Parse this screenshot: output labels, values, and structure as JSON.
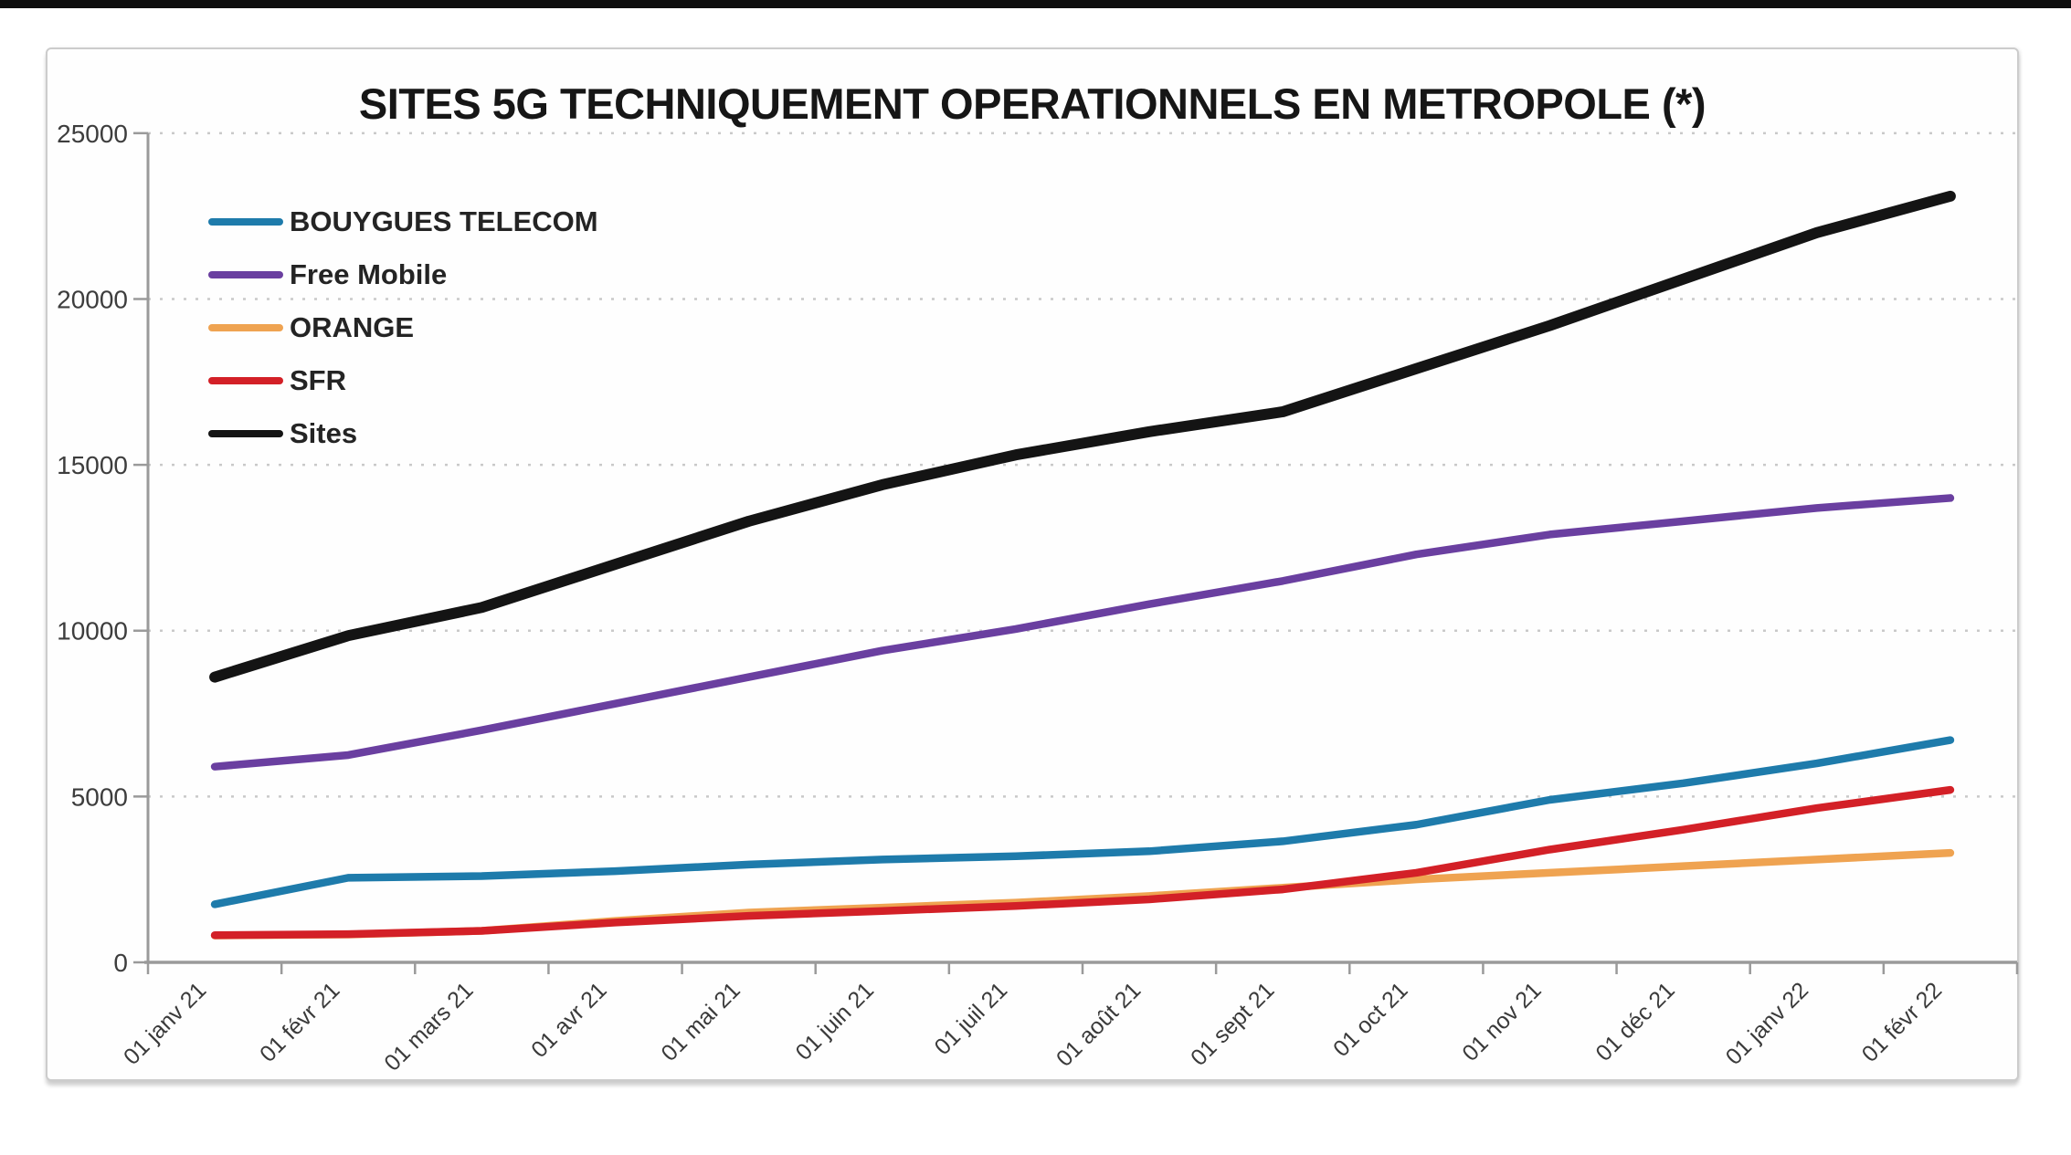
{
  "page": {
    "top_strip": "black-bar"
  },
  "chart": {
    "title": "SITES 5G TECHNIQUEMENT OPERATIONNELS EN METROPOLE (*)"
  },
  "chart_data": {
    "type": "line",
    "title": "SITES 5G TECHNIQUEMENT OPERATIONNELS EN METROPOLE (*)",
    "categories": [
      "01 janv 21",
      "01 févr 21",
      "01 mars 21",
      "01 avr 21",
      "01 mai 21",
      "01 juin 21",
      "01 juil 21",
      "01 août 21",
      "01 sept 21",
      "01 oct 21",
      "01 nov 21",
      "01 déc 21",
      "01 janv 22",
      "01 févr 22"
    ],
    "series": [
      {
        "name": "BOUYGUES TELECOM",
        "color": "#1E7BAB",
        "values": [
          1750,
          2550,
          2600,
          2750,
          2950,
          3100,
          3200,
          3350,
          3650,
          4150,
          4900,
          5400,
          6000,
          6700
        ]
      },
      {
        "name": "Free Mobile",
        "color": "#6A3FA0",
        "values": [
          5900,
          6250,
          7000,
          7800,
          8600,
          9400,
          10050,
          10800,
          11500,
          12300,
          12900,
          13300,
          13700,
          14000
        ]
      },
      {
        "name": "ORANGE",
        "color": "#EFA351",
        "values": [
          810,
          840,
          950,
          1250,
          1500,
          1650,
          1800,
          2000,
          2250,
          2500,
          2700,
          2900,
          3100,
          3300
        ]
      },
      {
        "name": "SFR",
        "color": "#D32027",
        "values": [
          820,
          850,
          950,
          1200,
          1400,
          1550,
          1700,
          1900,
          2200,
          2700,
          3400,
          4000,
          4650,
          5200
        ]
      },
      {
        "name": "Sites",
        "color": "#141414",
        "values": [
          8600,
          9850,
          10700,
          12000,
          13300,
          14400,
          15300,
          16000,
          16600,
          17900,
          19200,
          20600,
          22000,
          23100
        ]
      }
    ],
    "xlabel": "",
    "ylabel": "",
    "ylim": [
      0,
      25000
    ],
    "y_ticks": [
      0,
      5000,
      10000,
      15000,
      20000,
      25000
    ],
    "grid": "horizontal-dotted",
    "legend_position": "inside-top-left",
    "x_label_rotation_deg": 45
  }
}
